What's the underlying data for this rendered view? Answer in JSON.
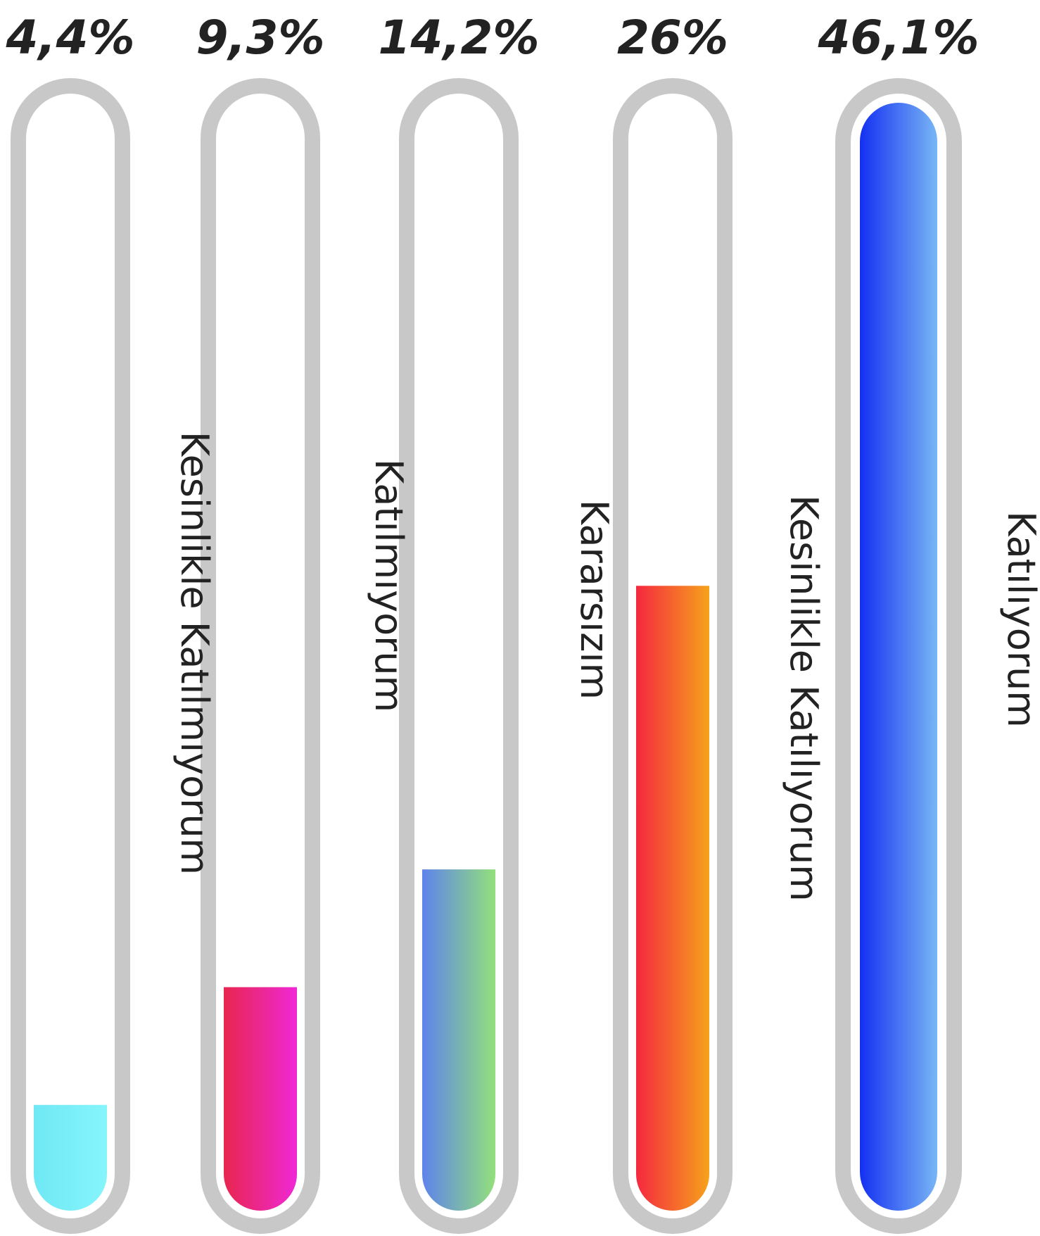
{
  "chart_data": {
    "type": "bar",
    "orientation": "vertical",
    "value_unit": "%",
    "categories": [
      "Kesinlikle Katılmıyorum",
      "Katılmıyorum",
      "Kararsızım",
      "Kesinlikle Katılıyorum",
      "Katılıyorum"
    ],
    "values": [
      4.4,
      9.3,
      14.2,
      26,
      46.1
    ],
    "value_labels": [
      "4,4%",
      "9,3%",
      "14,2%",
      "26%",
      "46,1%"
    ],
    "ylim": [
      0,
      46.1
    ],
    "grid": false,
    "legend": "none",
    "colors": {
      "track": "#c8c8c8",
      "fills": [
        [
          "#6fe8f5",
          "#86f5fb"
        ],
        [
          "#e8264e",
          "#ef28d6"
        ],
        [
          "#5e83ec",
          "#93e07b"
        ],
        [
          "#f5283f",
          "#f6a21c"
        ],
        [
          "#1430f2",
          "#78b6f5"
        ]
      ]
    }
  }
}
